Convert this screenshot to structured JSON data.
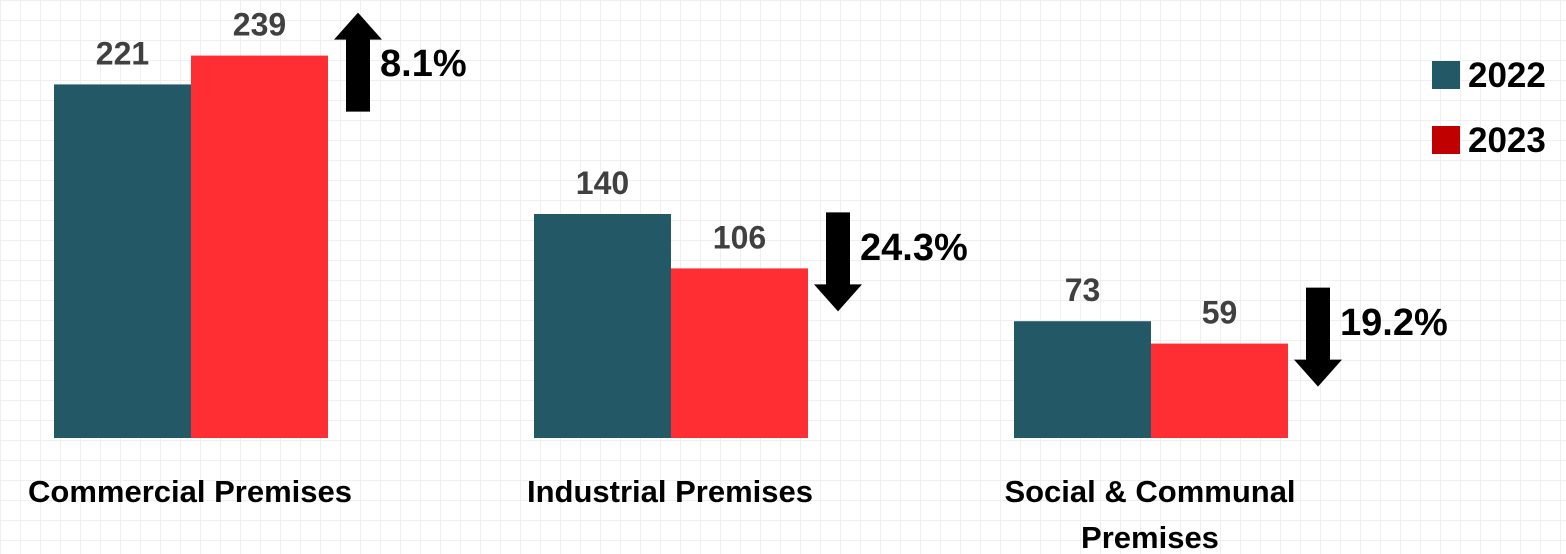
{
  "chart_data": {
    "type": "bar",
    "title": "",
    "xlabel": "",
    "ylabel": "",
    "grid": false,
    "legend_position": "top-right",
    "categories": [
      [
        "Commercial Premises"
      ],
      [
        "Industrial Premises"
      ],
      [
        "Social & Communal",
        "Premises"
      ]
    ],
    "series": [
      {
        "name": "2022",
        "color": "#235967",
        "values": [
          221,
          140,
          73
        ]
      },
      {
        "name": "2023",
        "color": "#ff2e32",
        "values": [
          239,
          106,
          59
        ]
      }
    ],
    "legend_swatch_colors": [
      "#235967",
      "#c00000"
    ],
    "changes": [
      {
        "direction": "up",
        "label": "8.1%"
      },
      {
        "direction": "down",
        "label": "24.3%"
      },
      {
        "direction": "down",
        "label": "19.2%"
      }
    ],
    "ylim": [
      0,
      260
    ]
  }
}
